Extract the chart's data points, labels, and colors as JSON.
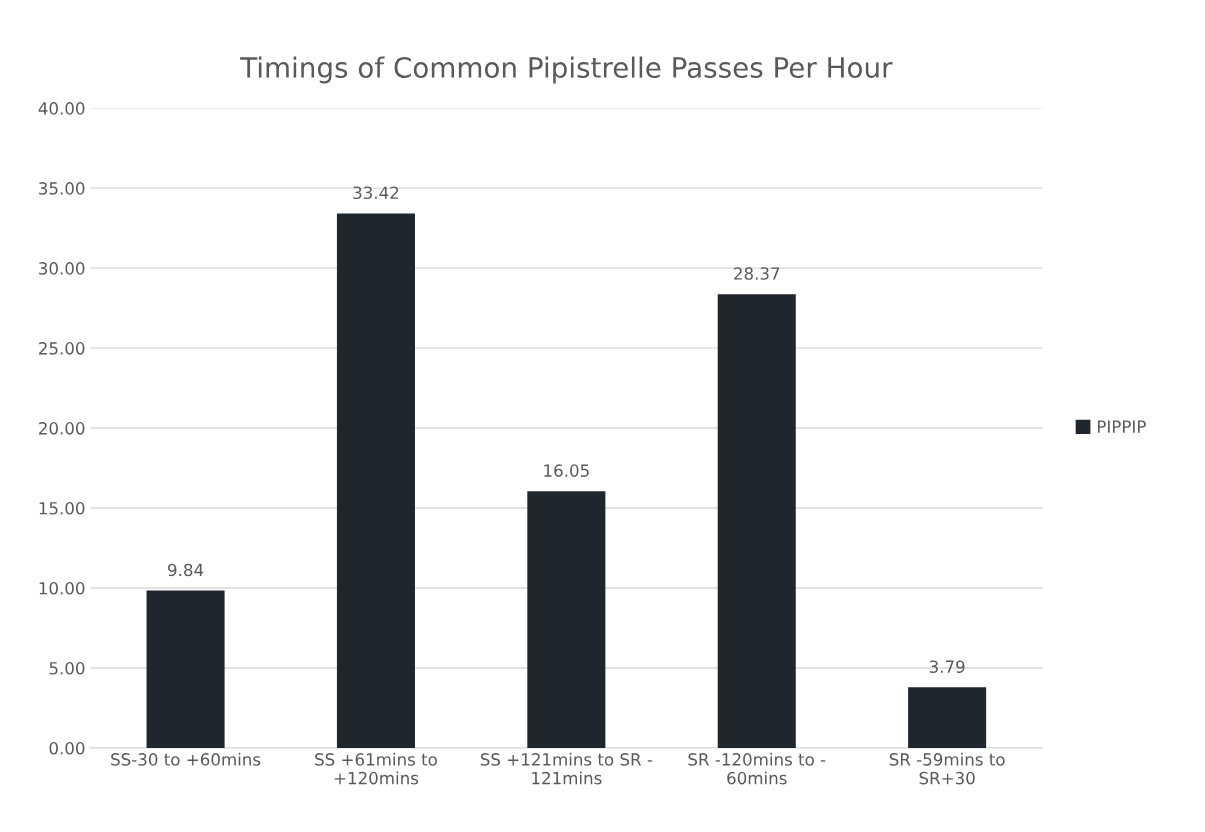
{
  "chart_data": {
    "type": "bar",
    "title": "Timings of Common Pipistrelle Passes Per Hour",
    "categories": [
      "SS-30 to +60mins",
      "SS +61mins to\n+120mins",
      "SS +121mins to SR -\n121mins",
      "SR -120mins to -\n60mins",
      "SR -59mins to\nSR+30"
    ],
    "series": [
      {
        "name": "PIPPIP",
        "color": "#1f262d",
        "values": [
          9.84,
          33.42,
          16.05,
          28.37,
          3.79
        ]
      }
    ],
    "ylim": [
      0,
      40
    ],
    "yticks": [
      {
        "value": 0,
        "label": "0.00"
      },
      {
        "value": 5,
        "label": "5.00"
      },
      {
        "value": 10,
        "label": "10.00"
      },
      {
        "value": 15,
        "label": "15.00"
      },
      {
        "value": 20,
        "label": "20.00"
      },
      {
        "value": 25,
        "label": "25.00"
      },
      {
        "value": 30,
        "label": "30.00"
      },
      {
        "value": 35,
        "label": "35.00"
      },
      {
        "value": 40,
        "label": "40.00"
      }
    ],
    "grid": "y",
    "legend": "right",
    "data_labels": true
  }
}
